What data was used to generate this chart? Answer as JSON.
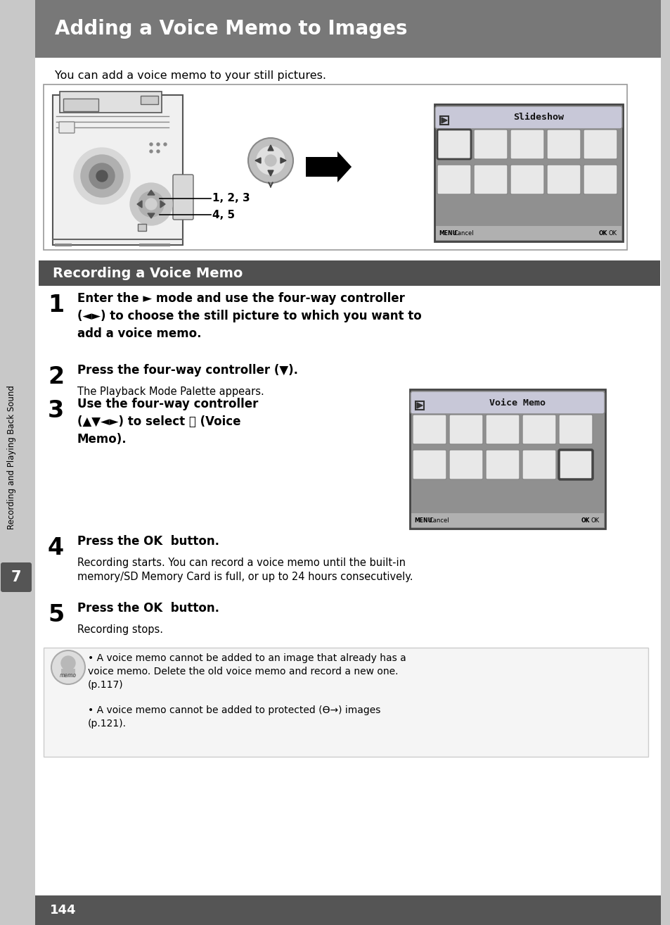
{
  "page_bg": "#d8d8d8",
  "content_bg": "#ffffff",
  "title_bg": "#787878",
  "title_text": "Adding a Voice Memo to Images",
  "title_color": "#ffffff",
  "section_bg": "#505050",
  "section_text": "Recording a Voice Memo",
  "section_color": "#ffffff",
  "intro_text": "You can add a voice memo to your still pictures.",
  "step1_text": "Enter the ► mode and use the four-way controller\n(◄►) to choose the still picture to which you want to\nadd a voice memo.",
  "step2_text": "Press the four-way controller (▼).",
  "step2_sub": "The Playback Mode Palette appears.",
  "step3_text": "Use the four-way controller\n(▲▼◄►) to select Ⓒ (Voice\nMemo).",
  "step4_text": "Press the OK button.",
  "step4_sub": "Recording starts. You can record a voice memo until the built-in\nmemory/SD Memory Card is full, or up to 24 hours consecutively.",
  "step5_text": "Press the OK button.",
  "step5_sub": "Recording stops.",
  "note1": "A voice memo cannot be added to an image that already has a\nvoice memo. Delete the old voice memo and record a new one.\n(p.117)",
  "note2": "A voice memo cannot be added to protected (Ө→) images\n(p.121).",
  "sidebar_num": "7",
  "sidebar_text": "Recording and Playing Back Sound",
  "page_num": "144"
}
